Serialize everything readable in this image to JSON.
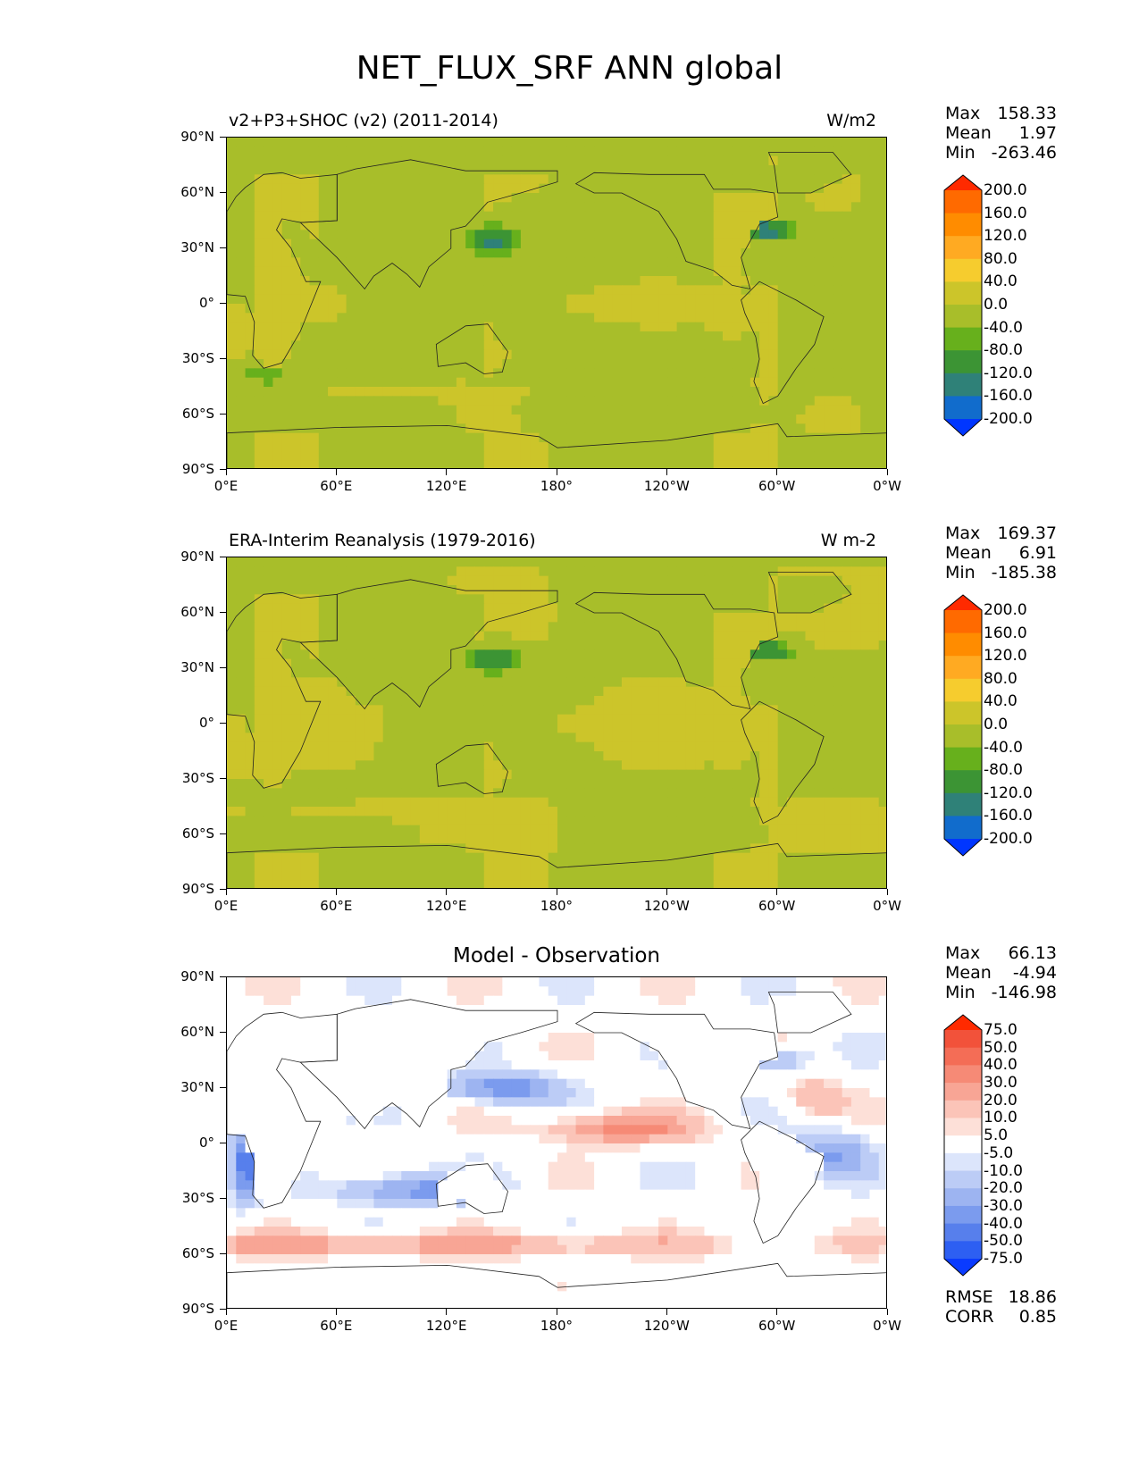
{
  "figure_title": "NET_FLUX_SRF ANN global",
  "axes": {
    "lat_ticks": [
      "90°N",
      "60°N",
      "30°N",
      "0°",
      "30°S",
      "60°S",
      "90°S"
    ],
    "lon_ticks": [
      "0°E",
      "60°E",
      "120°E",
      "180°",
      "120°W",
      "60°W",
      "0°W"
    ]
  },
  "chart_data": [
    {
      "type": "heatmap",
      "title": "v2+P3+SHOC (v2) (2011-2014)",
      "units": "W/m2",
      "stats": {
        "max_label": "Max",
        "max": "158.33",
        "mean_label": "Mean",
        "mean": "1.97",
        "min_label": "Min",
        "min": "-263.46"
      },
      "colorbar": {
        "levels": [
          "200.0",
          "160.0",
          "120.0",
          "80.0",
          "40.0",
          "0.0",
          "-40.0",
          "-80.0",
          "-120.0",
          "-160.0",
          "-200.0"
        ],
        "colors": [
          "#ff2a00",
          "#ff6a00",
          "#ff8c00",
          "#ffaa22",
          "#f6cc2e",
          "#ccc52a",
          "#a8be2a",
          "#67b01c",
          "#3c9434",
          "#2f8178",
          "#116ccc",
          "#0036ff"
        ]
      }
    },
    {
      "type": "heatmap",
      "title": "ERA-Interim Reanalysis (1979-2016)",
      "units": "W m-2",
      "stats": {
        "max_label": "Max",
        "max": "169.37",
        "mean_label": "Mean",
        "mean": "6.91",
        "min_label": "Min",
        "min": "-185.38"
      },
      "colorbar": {
        "levels": [
          "200.0",
          "160.0",
          "120.0",
          "80.0",
          "40.0",
          "0.0",
          "-40.0",
          "-80.0",
          "-120.0",
          "-160.0",
          "-200.0"
        ],
        "colors": [
          "#ff2a00",
          "#ff6a00",
          "#ff8c00",
          "#ffaa22",
          "#f6cc2e",
          "#ccc52a",
          "#a8be2a",
          "#67b01c",
          "#3c9434",
          "#2f8178",
          "#116ccc",
          "#0036ff"
        ]
      }
    },
    {
      "type": "heatmap",
      "title": "Model - Observation",
      "units": "",
      "stats": {
        "max_label": "Max",
        "max": "66.13",
        "mean_label": "Mean",
        "mean": "-4.94",
        "min_label": "Min",
        "min": "-146.98"
      },
      "colorbar": {
        "levels": [
          "75.0",
          "50.0",
          "40.0",
          "30.0",
          "20.0",
          "10.0",
          "5.0",
          "-5.0",
          "-10.0",
          "-20.0",
          "-30.0",
          "-40.0",
          "-50.0",
          "-75.0"
        ],
        "colors": [
          "#ff2a00",
          "#f2523a",
          "#f46d56",
          "#f68a76",
          "#f8a595",
          "#fbc4b8",
          "#fde0d8",
          "#ffffff",
          "#dce5fb",
          "#bcccf6",
          "#9db4f1",
          "#7b9bee",
          "#577fec",
          "#2d5ff2",
          "#0a3bff"
        ]
      },
      "metrics": {
        "rmse_label": "RMSE",
        "rmse": "18.86",
        "corr_label": "CORR",
        "corr": "0.85"
      }
    }
  ]
}
